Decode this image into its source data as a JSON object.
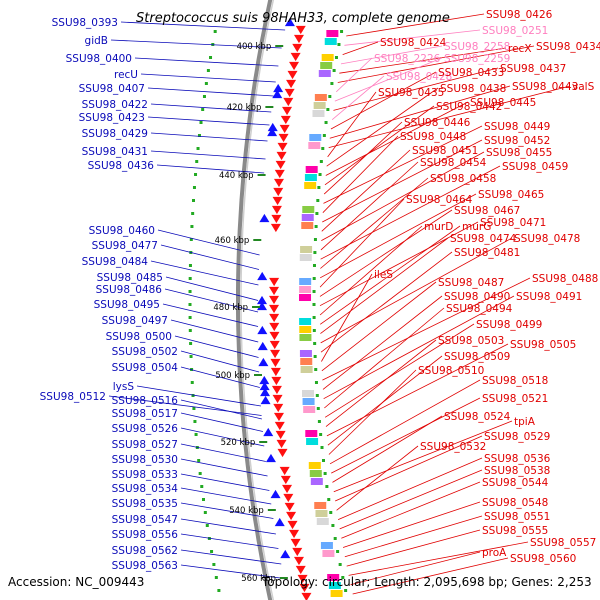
{
  "title": "Streptococcus suis 98HAH33, complete genome",
  "accession": "Accession: NC_009443",
  "topology": "Topology: circular; Length: 2,095,698 bp; Genes: 2,253",
  "colors": {
    "left_label": "#0a0ab8",
    "right_label": "#e00000",
    "pink_label": "#ff7fbf",
    "forward_arrow": "#1010ff",
    "reverse_arrow": "#ff1010",
    "backbone": "#808080"
  },
  "ticks": [
    "400 kbp",
    "420 kbp",
    "440 kbp",
    "460 kbp",
    "480 kbp",
    "500 kbp",
    "520 kbp",
    "540 kbp",
    "560 kbp"
  ],
  "left_labels": [
    "SSU98_0393",
    "gidB",
    "SSU98_0400",
    "recU",
    "SSU98_0407",
    "SSU98_0422",
    "SSU98_0423",
    "SSU98_0429",
    "SSU98_0431",
    "SSU98_0436",
    "SSU98_0460",
    "SSU98_0477",
    "SSU98_0484",
    "SSU98_0485",
    "SSU98_0486",
    "SSU98_0495",
    "SSU98_0497",
    "SSU98_0500",
    "SSU98_0502",
    "SSU98_0504",
    "lysS",
    "SSU98_0512",
    "SSU98_0516",
    "SSU98_0517",
    "SSU98_0526",
    "SSU98_0527",
    "SSU98_0530",
    "SSU98_0533",
    "SSU98_0534",
    "SSU98_0535",
    "SSU98_0547",
    "SSU98_0556",
    "SSU98_0562",
    "SSU98_0563"
  ],
  "right_labels": [
    "SSU98_0426",
    "SSU98_0251",
    "SSU98_0424",
    "SSU98_2258",
    "recX",
    "SSU98_0434",
    "SSU98_2226",
    "SSU98_2259",
    "SSU98_0437",
    "SSU98_0428",
    "SSU98_0433",
    "SSU98_0443",
    "valS",
    "SSU98_0435",
    "SSU98_0438",
    "SSU98_0445",
    "SSU98_0442",
    "SSU98_0446",
    "SSU98_0449",
    "SSU98_0448",
    "SSU98_0452",
    "SSU98_0451",
    "SSU98_0455",
    "SSU98_0454",
    "SSU98_0459",
    "SSU98_0458",
    "SSU98_0465",
    "SSU98_0464",
    "SSU98_0467",
    "SSU98_0471",
    "murD",
    "murG",
    "SSU98_0474",
    "SSU98_0478",
    "SSU98_0481",
    "ileS",
    "SSU98_0487",
    "SSU98_0488",
    "SSU98_0490",
    "SSU98_0491",
    "SSU98_0494",
    "SSU98_0499",
    "SSU98_0503",
    "SSU98_0505",
    "SSU98_0509",
    "SSU98_0510",
    "SSU98_0518",
    "SSU98_0521",
    "SSU98_0524",
    "tpiA",
    "SSU98_0529",
    "SSU98_0532",
    "SSU98_0536",
    "SSU98_0538",
    "SSU98_0544",
    "SSU98_0548",
    "SSU98_0551",
    "SSU98_0555",
    "SSU98_0557",
    "proA",
    "SSU98_0560"
  ]
}
